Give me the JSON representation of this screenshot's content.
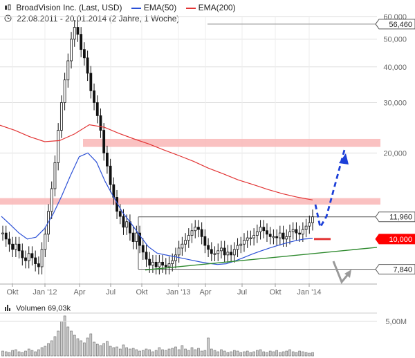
{
  "header": {
    "instrument": "BroadVision Inc. (Last, USD)",
    "ema50_label": "EMA(50)",
    "ema200_label": "EMA(200)",
    "date_range": "22.08.2011 - 20.01.2014 (2 Jahre, 1 Woche)"
  },
  "volume_header": {
    "label": "Volumen",
    "value": "69,03k"
  },
  "colors": {
    "price": "#111111",
    "ema50": "#2a4fd6",
    "ema200": "#e23434",
    "resistance_band": "#f9b6b6",
    "trendline": "#2f8a2f",
    "arrow_up": "#1c3fd8",
    "arrow_down": "#9a9a9a",
    "grid": "#dddddd",
    "price_tag_bg": "#ff0000"
  },
  "chart_data": {
    "type": "candlestick",
    "title": "BroadVision Inc. (Last, USD)",
    "y_scale": "log",
    "y_axis_position": "right",
    "ylim": [
      7000,
      62000
    ],
    "y_ticks": [
      {
        "value": 60000,
        "label": "60,000"
      },
      {
        "value": 50000,
        "label": "50,000"
      },
      {
        "value": 40000,
        "label": "40,000"
      },
      {
        "value": 30000,
        "label": "30,000"
      },
      {
        "value": 20000,
        "label": "20,000"
      }
    ],
    "x_ticks": [
      "Okt",
      "Jan '12",
      "Apr",
      "Jul",
      "Okt",
      "Jan '13",
      "Apr",
      "Jul",
      "Okt",
      "Jan '14"
    ],
    "price_tags": [
      {
        "value": 56460,
        "label": "56,460",
        "style": "outline"
      },
      {
        "value": 11960,
        "label": "11,960",
        "style": "outline"
      },
      {
        "value": 10000,
        "label": "10,000",
        "style": "filled"
      },
      {
        "value": 7840,
        "label": "7,840",
        "style": "outline"
      }
    ],
    "series": [
      {
        "name": "BroadVision Inc. (Last, USD)",
        "values": [
          10500,
          10000,
          9600,
          9200,
          9600,
          9100,
          8600,
          8400,
          8900,
          8600,
          8200,
          8000,
          9200,
          10400,
          12500,
          15000,
          18500,
          24000,
          30000,
          36000,
          42000,
          50000,
          55000,
          52000,
          46000,
          43000,
          38000,
          33000,
          30000,
          27000,
          24000,
          20000,
          18000,
          15500,
          14000,
          12500,
          12000,
          11000,
          11500,
          10500,
          9800,
          10500,
          9500,
          9000,
          8500,
          8100,
          8300,
          8000,
          8300,
          8100,
          8000,
          8200,
          8400,
          8800,
          9300,
          9600,
          9900,
          10300,
          10700,
          11000,
          10800,
          10200,
          9500,
          9200,
          8900,
          8900,
          9100,
          9300,
          8800,
          9000,
          8800,
          9200,
          9500,
          9600,
          9900,
          10100,
          10100,
          10300,
          10600,
          11000,
          10700,
          10400,
          10200,
          10200,
          10100,
          10500,
          10000,
          10200,
          10600,
          10800,
          10500,
          10400,
          10800,
          11100,
          11400,
          11960
        ]
      },
      {
        "name": "EMA(50)",
        "values": [
          12000,
          11250,
          10520,
          10000,
          10150,
          10880,
          12250,
          14200,
          16700,
          19400,
          20000,
          18600,
          15900,
          14000,
          12420,
          11350,
          10300,
          9400,
          8930,
          8800,
          8680,
          8560,
          8440,
          8320,
          8220,
          8150,
          8200,
          8380,
          8610,
          8860,
          9080,
          9300,
          9500,
          9700,
          9870,
          10000,
          10050
        ]
      },
      {
        "name": "EMA(200)",
        "values": [
          25000,
          24000,
          22800,
          21900,
          22100,
          23300,
          25100,
          24600,
          23400,
          22400,
          21500,
          20500,
          19600,
          18700,
          17700,
          16900,
          16100,
          15500,
          14900,
          14400,
          14000,
          13700
        ]
      }
    ],
    "annotations": [
      {
        "type": "horizontal_band",
        "from": 21000,
        "to": 22400
      },
      {
        "type": "horizontal_band",
        "from": 13200,
        "to": 13900
      },
      {
        "type": "horizontal_line",
        "value": 11960
      },
      {
        "type": "horizontal_line",
        "value": 7840
      },
      {
        "type": "trendline",
        "from": [
          48,
          7840
        ],
        "to": [
          110,
          10000
        ]
      },
      {
        "type": "dashed_arrow",
        "direction": "up",
        "points": [
          [
            95,
            13000
          ],
          [
            97,
            11960
          ],
          [
            100,
            21000
          ]
        ]
      },
      {
        "type": "arrow",
        "direction": "up",
        "points": [
          [
            100,
            9500
          ],
          [
            103,
            8000
          ],
          [
            105,
            8500
          ]
        ]
      },
      {
        "type": "price_marker",
        "value": 10000
      }
    ],
    "volume": {
      "label": "Volumen",
      "value_label": "69,03k",
      "y_ticks": [
        {
          "value": 5000000,
          "label": "5,00M"
        }
      ],
      "values": [
        0.7,
        0.6,
        0.5,
        0.8,
        0.9,
        0.6,
        0.5,
        0.7,
        1.0,
        0.8,
        0.6,
        0.9,
        1.2,
        1.4,
        1.8,
        2.2,
        2.8,
        3.6,
        5.0,
        5.8,
        4.2,
        3.6,
        3.0,
        2.5,
        2.2,
        1.9,
        2.6,
        3.2,
        2.0,
        1.7,
        1.5,
        1.8,
        2.1,
        1.4,
        1.2,
        1.3,
        1.0,
        1.6,
        1.2,
        1.0,
        1.1,
        0.9,
        0.7,
        0.8,
        1.0,
        0.9,
        0.6,
        0.8,
        1.2,
        0.9,
        0.8,
        1.0,
        1.1,
        1.3,
        0.9,
        1.5,
        1.0,
        0.8,
        1.2,
        0.9,
        1.1,
        0.7,
        0.8,
        2.6,
        1.0,
        0.8,
        0.6,
        0.9,
        0.7,
        0.5,
        0.6,
        0.8,
        0.7,
        0.5,
        0.6,
        0.7,
        0.5,
        0.6,
        0.8,
        0.9,
        0.6,
        0.5,
        0.7,
        0.6,
        0.8,
        0.5,
        0.6,
        0.7,
        0.9,
        0.6,
        0.5,
        0.7,
        0.6,
        0.5,
        0.4,
        0.5
      ],
      "unit": "M"
    }
  }
}
